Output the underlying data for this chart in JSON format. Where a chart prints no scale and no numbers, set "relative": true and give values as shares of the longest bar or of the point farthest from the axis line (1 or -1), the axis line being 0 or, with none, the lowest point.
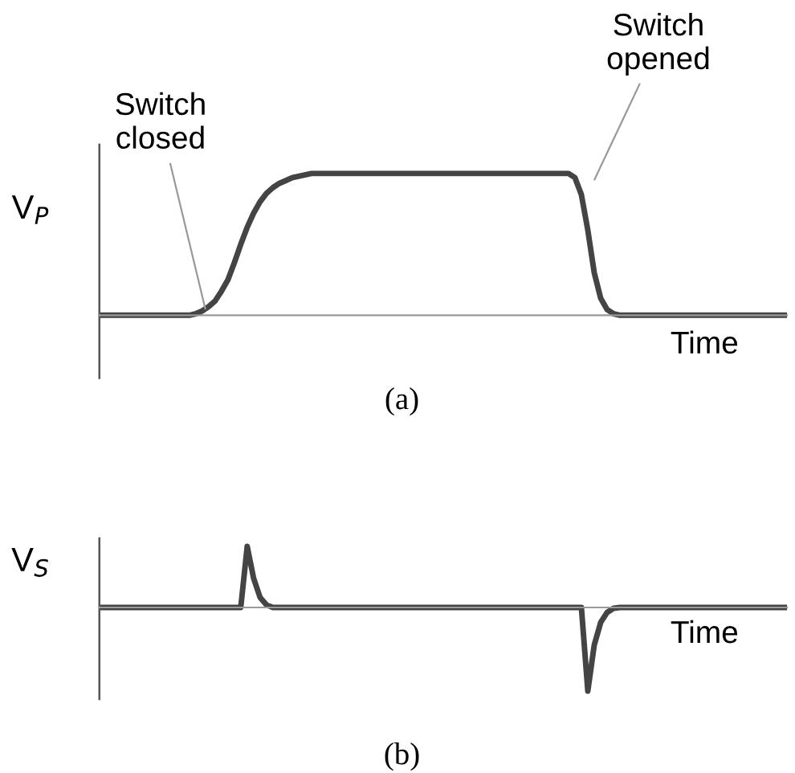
{
  "chart_data": [
    {
      "type": "line",
      "title": "(a)",
      "ylabel": "V$_{P}$",
      "xlabel": "Time",
      "relative": true,
      "color": "#444444",
      "annotations": [
        "Switch\nclosed",
        "Switch\nopened"
      ],
      "categories": [
        null,
        null,
        null,
        null,
        null,
        null,
        null,
        null,
        null,
        null,
        null,
        null,
        null,
        null,
        null,
        null,
        null,
        null,
        null,
        null,
        null,
        null,
        null,
        null,
        null,
        null,
        null,
        null,
        null,
        null,
        null,
        null,
        null,
        null,
        null,
        null,
        null,
        null,
        null,
        null,
        null,
        null,
        null,
        null,
        null,
        null,
        null,
        null,
        null,
        null,
        null,
        null,
        null,
        null,
        null,
        null,
        null,
        null,
        null,
        null,
        null,
        null,
        null,
        null,
        null,
        null,
        null,
        null,
        null,
        null,
        null,
        null,
        null,
        null,
        null,
        null,
        null,
        null,
        null,
        null,
        null,
        null,
        null,
        null,
        null,
        null,
        null,
        null,
        null,
        null,
        null,
        null,
        null,
        null,
        null,
        null,
        null,
        null,
        null,
        null,
        null,
        null,
        null,
        null,
        null,
        null,
        null,
        null
      ],
      "values": [
        0,
        0,
        0,
        0,
        0,
        0,
        0,
        0,
        0,
        0,
        0,
        0,
        0,
        0,
        0,
        0.01,
        0.03,
        0.06,
        0.1,
        0.17,
        0.25,
        0.37,
        0.5,
        0.62,
        0.72,
        0.8,
        0.86,
        0.9,
        0.93,
        0.95,
        0.97,
        0.98,
        0.99,
        1,
        1,
        1,
        1,
        1,
        1,
        1,
        1,
        1,
        1,
        1,
        1,
        1,
        1,
        1,
        1,
        1,
        1,
        1,
        1,
        1,
        1,
        1,
        1,
        1,
        1,
        1,
        1,
        1,
        1,
        1,
        1,
        1,
        1,
        1,
        1,
        1,
        1,
        1,
        1,
        1,
        0.97,
        0.85,
        0.6,
        0.3,
        0.12,
        0.04,
        0.01,
        0,
        0,
        0,
        0,
        0,
        0,
        0,
        0,
        0,
        0,
        0,
        0,
        0,
        0,
        0,
        0,
        0,
        0,
        0,
        0,
        0,
        0,
        0,
        0,
        0,
        0,
        0
      ]
    },
    {
      "type": "line",
      "title": "(b)",
      "ylabel": "V$_{S}$",
      "xlabel": "Time",
      "relative": true,
      "color": "#444444",
      "categories": [
        null,
        null,
        null,
        null,
        null,
        null,
        null,
        null,
        null,
        null,
        null,
        null,
        null,
        null,
        null,
        null,
        null,
        null,
        null,
        null,
        null,
        null,
        null,
        null,
        null,
        null,
        null,
        null,
        null,
        null,
        null,
        null,
        null,
        null,
        null,
        null,
        null,
        null,
        null,
        null,
        null,
        null,
        null,
        null,
        null,
        null,
        null,
        null,
        null,
        null,
        null,
        null,
        null,
        null,
        null,
        null,
        null,
        null,
        null,
        null,
        null,
        null,
        null,
        null,
        null,
        null,
        null,
        null,
        null,
        null,
        null,
        null,
        null,
        null,
        null,
        null,
        null,
        null,
        null,
        null,
        null,
        null,
        null,
        null,
        null,
        null,
        null,
        null,
        null,
        null,
        null,
        null,
        null,
        null,
        null,
        null,
        null,
        null,
        null,
        null,
        null,
        null,
        null,
        null,
        null,
        null,
        null,
        null
      ],
      "values": [
        0,
        0,
        0,
        0,
        0,
        0,
        0,
        0,
        0,
        0,
        0,
        0,
        0,
        0,
        0,
        0,
        0,
        0,
        0,
        0,
        0,
        0,
        0,
        0.73,
        0.35,
        0.12,
        0.03,
        0,
        0,
        0,
        0,
        0,
        0,
        0,
        0,
        0,
        0,
        0,
        0,
        0,
        0,
        0,
        0,
        0,
        0,
        0,
        0,
        0,
        0,
        0,
        0,
        0,
        0,
        0,
        0,
        0,
        0,
        0,
        0,
        0,
        0,
        0,
        0,
        0,
        0,
        0,
        0,
        0,
        0,
        0,
        0,
        0,
        0,
        0,
        0,
        0,
        -1,
        -0.45,
        -0.18,
        -0.06,
        -0.01,
        0,
        0,
        0,
        0,
        0,
        0,
        0,
        0,
        0,
        0,
        0,
        0,
        0,
        0,
        0,
        0,
        0,
        0,
        0,
        0,
        0,
        0,
        0,
        0,
        0,
        0,
        0
      ]
    }
  ]
}
